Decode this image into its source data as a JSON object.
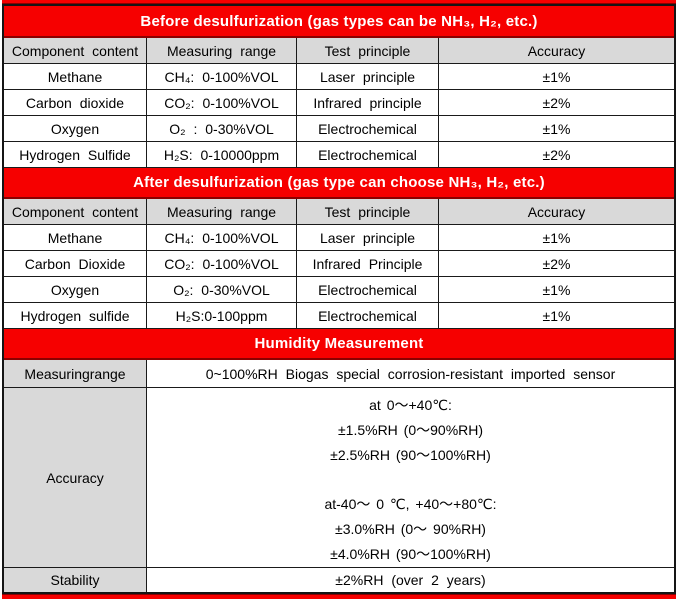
{
  "colors": {
    "header_red": "#f60000",
    "header_dark_red": "#8b0000",
    "cell_gray": "#d9d9d9",
    "border_black": "#1a1a1a",
    "header_text": "#ffffff"
  },
  "before": {
    "title": "Before desulfurization (gas types can be NH₃, H₂, etc.)",
    "headers": [
      "Component content",
      "Measuring range",
      "Test principle",
      "Accuracy"
    ],
    "rows": [
      {
        "component": "Methane",
        "range": "CH₄: 0-100%VOL",
        "principle": "Laser principle",
        "accuracy": "±1%"
      },
      {
        "component": "Carbon dioxide",
        "range": "CO₂: 0-100%VOL",
        "principle": "Infrared principle",
        "accuracy": "±2%"
      },
      {
        "component": "Oxygen",
        "range": "O₂ : 0-30%VOL",
        "principle": "Electrochemical",
        "accuracy": "±1%"
      },
      {
        "component": "Hydrogen Sulfide",
        "range": "H₂S: 0-10000ppm",
        "principle": "Electrochemical",
        "accuracy": "±2%"
      }
    ]
  },
  "after": {
    "title": "After desulfurization (gas type can choose NH₃, H₂, etc.)",
    "headers": [
      "Component content",
      "Measuring range",
      "Test principle",
      "Accuracy"
    ],
    "rows": [
      {
        "component": "Methane",
        "range": "CH₄: 0-100%VOL",
        "principle": "Laser principle",
        "accuracy": "±1%"
      },
      {
        "component": "Carbon Dioxide",
        "range": "CO₂: 0-100%VOL",
        "principle": "Infrared Principle",
        "accuracy": "±2%"
      },
      {
        "component": "Oxygen",
        "range": "O₂: 0-30%VOL",
        "principle": "Electrochemical",
        "accuracy": "±1%"
      },
      {
        "component": "Hydrogen sulfide",
        "range": "H₂S:0-100ppm",
        "principle": "Electrochemical",
        "accuracy": "±1%"
      }
    ]
  },
  "humidity": {
    "title": "Humidity Measurement",
    "measuring_range": {
      "label": "Measuringrange",
      "value": "0~100%RH Biogas special corrosion-resistant imported sensor"
    },
    "accuracy": {
      "label": "Accuracy",
      "lines": [
        "at 0～+40℃:",
        "±1.5%RH (0～90%RH)",
        "±2.5%RH (90～100%RH)",
        "",
        "at-40～ 0 ℃, +40～+80℃:",
        "±3.0%RH (0～ 90%RH)",
        "±4.0%RH (90～100%RH)"
      ]
    },
    "stability": {
      "label": "Stability",
      "value": "±2%RH (over 2 years)"
    }
  }
}
